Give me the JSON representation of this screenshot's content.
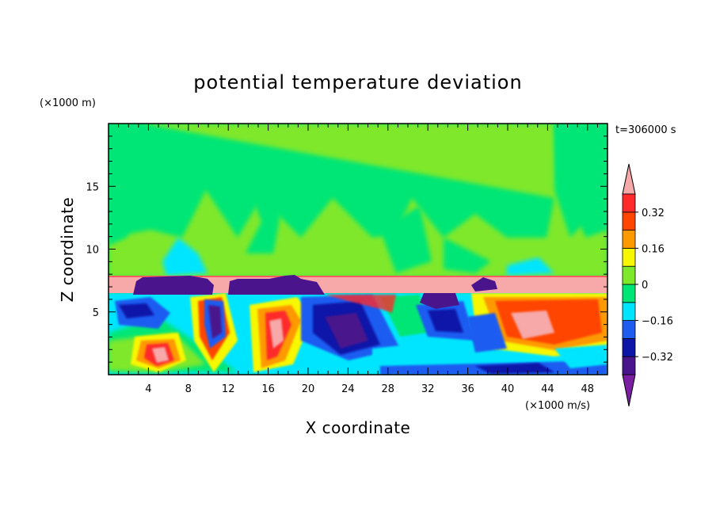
{
  "chart_data": {
    "type": "heatmap",
    "title": "potential temperature deviation",
    "xlabel": "X coordinate",
    "ylabel": "Z coordinate",
    "x_unit": "(×1000 m/s)",
    "y_unit": "(×1000 m)",
    "time_label": "t=306000 s",
    "xlim": [
      0,
      50
    ],
    "ylim": [
      0,
      20
    ],
    "x_ticks": [
      4,
      8,
      12,
      16,
      20,
      24,
      28,
      32,
      36,
      40,
      44,
      48
    ],
    "y_ticks": [
      5,
      10,
      15
    ],
    "colorbar": {
      "labels": [
        "0.32",
        "0.16",
        "0",
        "−0.16",
        "−0.32"
      ],
      "label_values": [
        0.32,
        0.16,
        0,
        -0.16,
        -0.32
      ],
      "levels": [
        -0.4,
        -0.32,
        -0.24,
        -0.16,
        -0.08,
        0,
        0.08,
        0.16,
        0.24,
        0.32,
        0.4
      ],
      "colors": [
        "#7b1fa2",
        "#4a148c",
        "#0d14a8",
        "#1e5cf0",
        "#00e5ff",
        "#00e676",
        "#7fe82a",
        "#f7f700",
        "#ff9900",
        "#ff4500",
        "#ff2a2a",
        "#f7a8a8"
      ]
    },
    "regions": [
      {
        "name": "upper-layer",
        "value": 0.04
      },
      {
        "name": "stable-band",
        "value": 0.45,
        "z_range": [
          6.5,
          7.8
        ]
      },
      {
        "name": "cold-patches-at-band",
        "value": -0.45
      },
      {
        "name": "warm-core-x6",
        "value": 0.38
      },
      {
        "name": "cold-core-x24",
        "value": -0.35
      },
      {
        "name": "warm-core-x42",
        "value": 0.36
      }
    ]
  }
}
